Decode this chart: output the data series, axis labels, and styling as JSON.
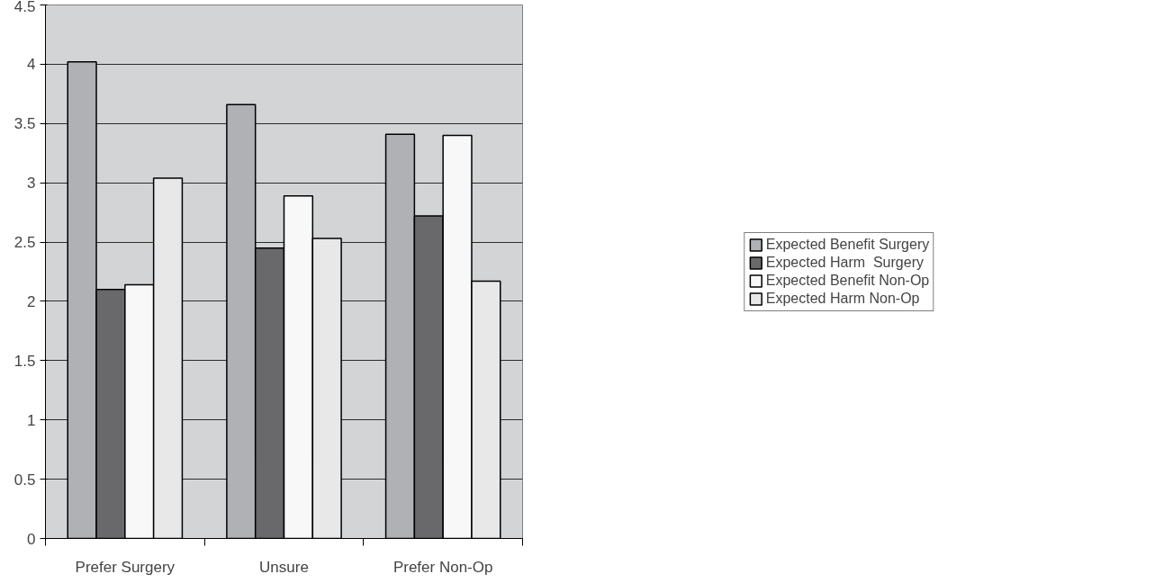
{
  "chart_data": {
    "type": "bar",
    "categories": [
      "Prefer Surgery",
      "Unsure",
      "Prefer Non-Op"
    ],
    "series": [
      {
        "name": "Expected Benefit Surgery",
        "color": "#b0b1b5",
        "values": [
          4.02,
          3.66,
          3.41
        ]
      },
      {
        "name": "Expected Harm  Surgery",
        "color": "#69696b",
        "values": [
          2.1,
          2.45,
          2.72
        ]
      },
      {
        "name": "Expected Benefit Non-Op",
        "color": "#f8f8f8",
        "values": [
          2.14,
          2.89,
          3.4
        ]
      },
      {
        "name": "Expected Harm Non-Op",
        "color": "#e8e8e8",
        "values": [
          3.04,
          2.53,
          2.17
        ]
      }
    ],
    "ylim": [
      0,
      4.5
    ],
    "yticks": [
      0,
      0.5,
      1,
      1.5,
      2,
      2.5,
      3,
      3.5,
      4,
      4.5
    ],
    "grid": "y",
    "legend": "right"
  }
}
